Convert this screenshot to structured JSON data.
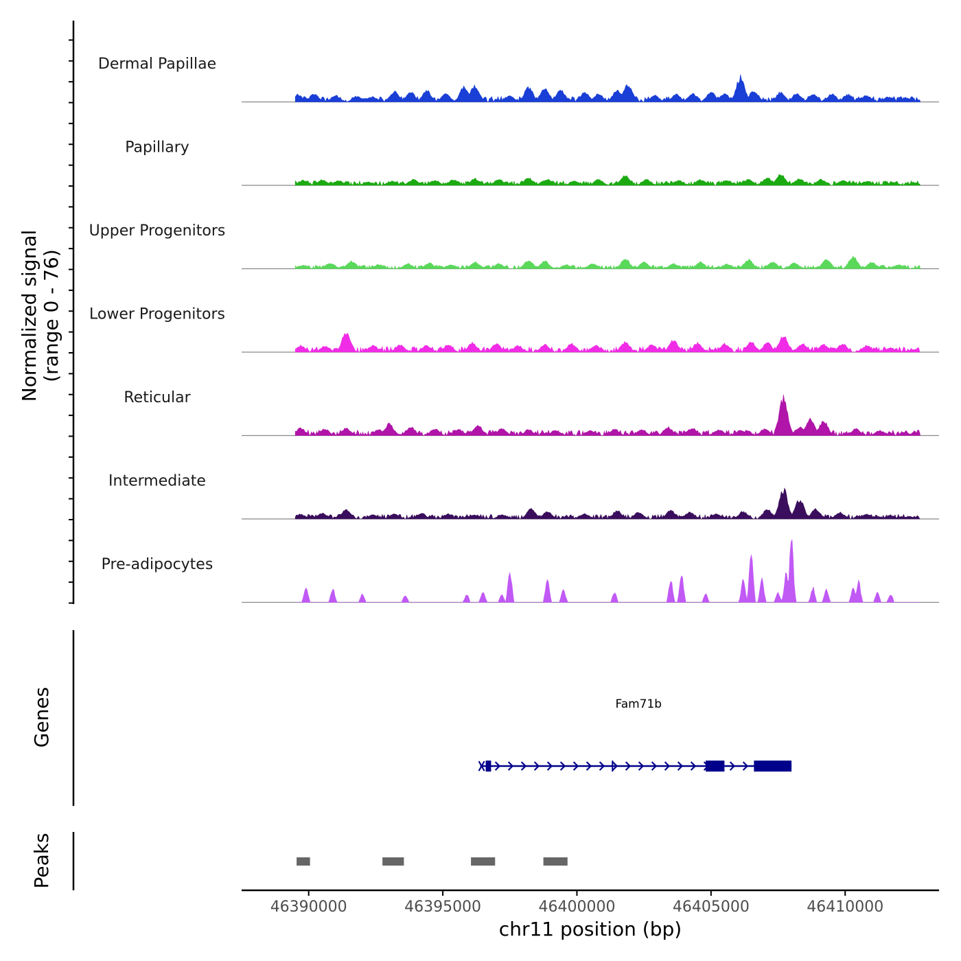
{
  "chart_data": {
    "type": "area",
    "title": "",
    "ylabel_line1": "Normalized signal",
    "ylabel_line2": "(range 0 - 76)",
    "ylim": [
      0,
      76
    ],
    "xlabel": "chr11 position (bp)",
    "xlim": [
      46387500,
      46413500
    ],
    "xticks": [
      46390000,
      46395000,
      46400000,
      46405000,
      46410000
    ],
    "tick_labels": [
      "46390000",
      "46395000",
      "46400000",
      "46405000",
      "46410000"
    ],
    "grid": false,
    "series": [
      {
        "name": "Dermal Papillae",
        "color": "#1a3fd6",
        "baseline": 6,
        "peaks": [
          [
            46389600,
            9
          ],
          [
            46390200,
            10
          ],
          [
            46391000,
            8
          ],
          [
            46391800,
            7
          ],
          [
            46392400,
            6
          ],
          [
            46393200,
            13
          ],
          [
            46393800,
            12
          ],
          [
            46394400,
            14
          ],
          [
            46395100,
            10
          ],
          [
            46395800,
            18
          ],
          [
            46396200,
            20
          ],
          [
            46397500,
            8
          ],
          [
            46398200,
            18
          ],
          [
            46398800,
            17
          ],
          [
            46399400,
            14
          ],
          [
            46400300,
            12
          ],
          [
            46400800,
            10
          ],
          [
            46401500,
            14
          ],
          [
            46401900,
            20
          ],
          [
            46402900,
            8
          ],
          [
            46403700,
            9
          ],
          [
            46404300,
            10
          ],
          [
            46405000,
            12
          ],
          [
            46405500,
            10
          ],
          [
            46406100,
            30
          ],
          [
            46406600,
            14
          ],
          [
            46407600,
            12
          ],
          [
            46408200,
            10
          ],
          [
            46408800,
            9
          ],
          [
            46409500,
            10
          ],
          [
            46410100,
            9
          ],
          [
            46410800,
            8
          ],
          [
            46411600,
            6
          ],
          [
            46412300,
            5
          ]
        ]
      },
      {
        "name": "Papillary",
        "color": "#1caa12",
        "baseline": 5,
        "peaks": [
          [
            46389800,
            6
          ],
          [
            46390500,
            7
          ],
          [
            46391100,
            6
          ],
          [
            46392200,
            4
          ],
          [
            46393100,
            5
          ],
          [
            46393900,
            7
          ],
          [
            46394700,
            6
          ],
          [
            46395400,
            7
          ],
          [
            46396200,
            8
          ],
          [
            46397100,
            7
          ],
          [
            46398200,
            9
          ],
          [
            46398900,
            7
          ],
          [
            46399900,
            5
          ],
          [
            46400800,
            7
          ],
          [
            46401800,
            13
          ],
          [
            46402600,
            7
          ],
          [
            46403800,
            6
          ],
          [
            46404600,
            7
          ],
          [
            46405600,
            6
          ],
          [
            46406400,
            7
          ],
          [
            46407100,
            9
          ],
          [
            46407600,
            14
          ],
          [
            46408300,
            8
          ],
          [
            46409100,
            7
          ],
          [
            46409900,
            6
          ],
          [
            46410800,
            5
          ],
          [
            46411800,
            4
          ],
          [
            46412600,
            3
          ]
        ]
      },
      {
        "name": "Upper Progenitors",
        "color": "#5ad85a",
        "baseline": 4,
        "peaks": [
          [
            46389800,
            4
          ],
          [
            46390800,
            7
          ],
          [
            46391600,
            9
          ],
          [
            46392600,
            5
          ],
          [
            46393700,
            6
          ],
          [
            46394500,
            7
          ],
          [
            46395300,
            5
          ],
          [
            46396200,
            8
          ],
          [
            46397100,
            6
          ],
          [
            46398200,
            10
          ],
          [
            46398800,
            9
          ],
          [
            46399600,
            5
          ],
          [
            46400600,
            6
          ],
          [
            46401800,
            12
          ],
          [
            46402500,
            8
          ],
          [
            46403600,
            6
          ],
          [
            46404600,
            8
          ],
          [
            46405600,
            6
          ],
          [
            46406400,
            11
          ],
          [
            46407300,
            8
          ],
          [
            46408100,
            7
          ],
          [
            46409300,
            11
          ],
          [
            46410300,
            15
          ],
          [
            46411000,
            8
          ],
          [
            46412000,
            5
          ],
          [
            46412900,
            3
          ]
        ]
      },
      {
        "name": "Lower Progenitors",
        "color": "#f02ce6",
        "baseline": 6,
        "peaks": [
          [
            46389700,
            8
          ],
          [
            46390600,
            7
          ],
          [
            46391400,
            24
          ],
          [
            46392400,
            8
          ],
          [
            46393400,
            9
          ],
          [
            46394400,
            8
          ],
          [
            46395200,
            9
          ],
          [
            46396100,
            11
          ],
          [
            46397000,
            10
          ],
          [
            46397800,
            8
          ],
          [
            46398800,
            9
          ],
          [
            46399800,
            10
          ],
          [
            46400700,
            8
          ],
          [
            46401800,
            12
          ],
          [
            46402800,
            9
          ],
          [
            46403600,
            14
          ],
          [
            46404500,
            11
          ],
          [
            46405500,
            10
          ],
          [
            46406500,
            12
          ],
          [
            46407100,
            11
          ],
          [
            46407700,
            20
          ],
          [
            46408400,
            10
          ],
          [
            46409200,
            9
          ],
          [
            46409900,
            10
          ],
          [
            46410800,
            8
          ],
          [
            46411700,
            5
          ],
          [
            46412500,
            3
          ]
        ]
      },
      {
        "name": "Reticular",
        "color": "#b014a8",
        "baseline": 6,
        "peaks": [
          [
            46389700,
            9
          ],
          [
            46390600,
            8
          ],
          [
            46391400,
            9
          ],
          [
            46392600,
            7
          ],
          [
            46393000,
            14
          ],
          [
            46393800,
            10
          ],
          [
            46394700,
            8
          ],
          [
            46395600,
            7
          ],
          [
            46396300,
            13
          ],
          [
            46397200,
            8
          ],
          [
            46398200,
            7
          ],
          [
            46399200,
            6
          ],
          [
            46400500,
            6
          ],
          [
            46401400,
            8
          ],
          [
            46402400,
            7
          ],
          [
            46403400,
            10
          ],
          [
            46404300,
            9
          ],
          [
            46405300,
            7
          ],
          [
            46406100,
            6
          ],
          [
            46407000,
            8
          ],
          [
            46407700,
            46
          ],
          [
            46408300,
            10
          ],
          [
            46408700,
            20
          ],
          [
            46409200,
            18
          ],
          [
            46410400,
            8
          ],
          [
            46411300,
            6
          ],
          [
            46412200,
            4
          ]
        ]
      },
      {
        "name": "Intermediate",
        "color": "#3a0e5c",
        "baseline": 5,
        "peaks": [
          [
            46389700,
            6
          ],
          [
            46390500,
            7
          ],
          [
            46391400,
            12
          ],
          [
            46392400,
            5
          ],
          [
            46393200,
            6
          ],
          [
            46394200,
            7
          ],
          [
            46395200,
            6
          ],
          [
            46396200,
            5
          ],
          [
            46397200,
            5
          ],
          [
            46398300,
            12
          ],
          [
            46398900,
            9
          ],
          [
            46400300,
            6
          ],
          [
            46401500,
            10
          ],
          [
            46402300,
            8
          ],
          [
            46403500,
            11
          ],
          [
            46404200,
            8
          ],
          [
            46405200,
            6
          ],
          [
            46406200,
            9
          ],
          [
            46407100,
            12
          ],
          [
            46407700,
            36
          ],
          [
            46408300,
            24
          ],
          [
            46408900,
            12
          ],
          [
            46409800,
            8
          ],
          [
            46410800,
            6
          ],
          [
            46411700,
            4
          ],
          [
            46412400,
            3
          ]
        ]
      },
      {
        "name": "Pre-adipocytes",
        "color": "#c159f5",
        "baseline": 0,
        "peaks": [
          [
            46389900,
            18
          ],
          [
            46390900,
            16
          ],
          [
            46392000,
            10
          ],
          [
            46393600,
            9
          ],
          [
            46395900,
            10
          ],
          [
            46396500,
            14
          ],
          [
            46397200,
            10
          ],
          [
            46397500,
            38
          ],
          [
            46398900,
            28
          ],
          [
            46399500,
            16
          ],
          [
            46401400,
            12
          ],
          [
            46403500,
            28
          ],
          [
            46403900,
            36
          ],
          [
            46404800,
            10
          ],
          [
            46406200,
            28
          ],
          [
            46406500,
            60
          ],
          [
            46406900,
            28
          ],
          [
            46407500,
            12
          ],
          [
            46407800,
            36
          ],
          [
            46408000,
            76
          ],
          [
            46408800,
            18
          ],
          [
            46409300,
            16
          ],
          [
            46410300,
            18
          ],
          [
            46410500,
            26
          ],
          [
            46411200,
            12
          ],
          [
            46411700,
            10
          ]
        ]
      }
    ],
    "panels": {
      "genes_label": "Genes",
      "peaks_label": "Peaks"
    },
    "gene": {
      "name": "Fam71b",
      "color": "#00008b",
      "start": 46396600,
      "end": 46408000,
      "strand": "+",
      "exons": [
        [
          46396600,
          46396800
        ],
        [
          46401300,
          46401350
        ],
        [
          46404800,
          46405500
        ],
        [
          46406600,
          46408000
        ]
      ]
    },
    "peaks_regions": [
      [
        46389550,
        46390050
      ],
      [
        46392750,
        46393550
      ],
      [
        46396050,
        46396950
      ],
      [
        46398750,
        46399650
      ]
    ],
    "peak_color": "#666666"
  }
}
